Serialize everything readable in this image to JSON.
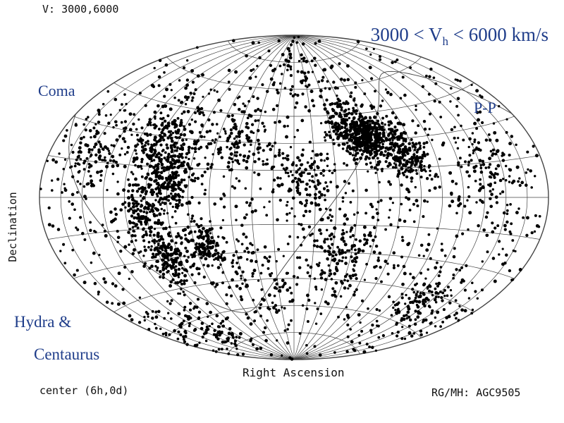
{
  "header": {
    "velocity_range_label": "V: 3000,6000",
    "title_prefix": "3000 < V",
    "title_subscript": "h",
    "title_suffix": " < 6000 km/s"
  },
  "annotations": {
    "coma": "Coma",
    "pp": "P-P",
    "hydra": "Hydra &",
    "centaurus": "Centaurus"
  },
  "axes": {
    "xlabel": "Right Ascension",
    "ylabel": "Declination"
  },
  "footer": {
    "center_label": "center (6h,0d)",
    "credit": "RG/MH: AGC9505"
  },
  "colors": {
    "points": "#000000",
    "grid": "#444444",
    "annotation": "#1f3d8a"
  },
  "chart_data": {
    "type": "scatter",
    "projection": "aitoff",
    "title": "3000 < Vh < 6000 km/s",
    "xlabel": "Right Ascension",
    "ylabel": "Declination",
    "grid": true,
    "ra_grid_step_hours": 1,
    "dec_grid_step_degrees": 15,
    "clusters": [
      {
        "ra": 12.8,
        "dec": 27,
        "spread": 12,
        "n": 260
      },
      {
        "ra": 11.8,
        "dec": 10,
        "spread": 9,
        "n": 220
      },
      {
        "ra": 13.2,
        "dec": -8,
        "spread": 8,
        "n": 160
      },
      {
        "ra": 12.6,
        "dec": -30,
        "spread": 7,
        "n": 170
      },
      {
        "ra": 10.5,
        "dec": -25,
        "spread": 6,
        "n": 130
      },
      {
        "ra": 2.2,
        "dec": 32,
        "spread": 6,
        "n": 280
      },
      {
        "ra": 1.2,
        "dec": 30,
        "spread": 8,
        "n": 180
      },
      {
        "ra": 3.0,
        "dec": 40,
        "spread": 7,
        "n": 170
      },
      {
        "ra": 0.3,
        "dec": 20,
        "spread": 7,
        "n": 130
      },
      {
        "ra": 5.5,
        "dec": 10,
        "spread": 10,
        "n": 110
      },
      {
        "ra": 3.5,
        "dec": -30,
        "spread": 12,
        "n": 140
      },
      {
        "ra": 21.5,
        "dec": -50,
        "spread": 8,
        "n": 120
      },
      {
        "ra": 20.5,
        "dec": 10,
        "spread": 10,
        "n": 100
      },
      {
        "ra": 16.0,
        "dec": 20,
        "spread": 10,
        "n": 100
      },
      {
        "ra": 9.0,
        "dec": 30,
        "spread": 12,
        "n": 110
      },
      {
        "ra": 8.0,
        "dec": -45,
        "spread": 12,
        "n": 80
      },
      {
        "ra": 14.5,
        "dec": -65,
        "spread": 8,
        "n": 70
      },
      {
        "ra": 6.0,
        "dec": 70,
        "spread": 10,
        "n": 60
      },
      {
        "ra": 17.8,
        "dec": -55,
        "spread": 10,
        "n": 70
      }
    ],
    "uniform_points": 950
  }
}
